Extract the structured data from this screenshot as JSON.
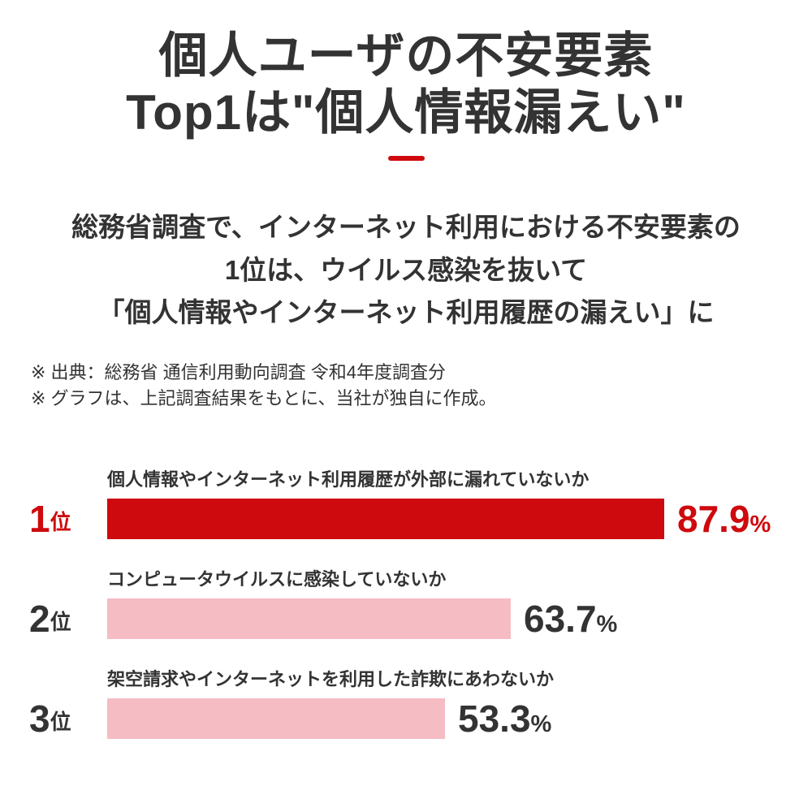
{
  "title": {
    "line1": "個人ユーザの不安要素",
    "line2": "Top1は\"個人情報漏えい\""
  },
  "subtitle": {
    "line1": "総務省調査で、インターネット利用における不安要素の",
    "line2": "1位は、ウイルス感染を抜いて",
    "line3": "「個人情報やインターネット利用履歴の漏えい」に"
  },
  "notes": {
    "line1": "※ 出典：総務省 通信利用動向調査 令和4年度調査分",
    "line2": "※ グラフは、上記調査結果をもとに、当社が独自に作成。"
  },
  "colors": {
    "accent_red": "#CE0A0E",
    "bar_pink": "#F6BCC3",
    "text_dark": "#333333",
    "background": "#FFFFFF"
  },
  "chart": {
    "rows": [
      {
        "rank_number": "1",
        "rank_suffix": "位",
        "label": "個人情報やインターネット利用履歴が外部に漏れていないか",
        "value": 87.9,
        "value_display": "87.9",
        "percent_sign": "%",
        "highlight": true
      },
      {
        "rank_number": "2",
        "rank_suffix": "位",
        "label": "コンピュータウイルスに感染していないか",
        "value": 63.7,
        "value_display": "63.7",
        "percent_sign": "%",
        "highlight": false
      },
      {
        "rank_number": "3",
        "rank_suffix": "位",
        "label": "架空請求やインターネットを利用した詐欺にあわないか",
        "value": 53.3,
        "value_display": "53.3",
        "percent_sign": "%",
        "highlight": false
      }
    ]
  },
  "chart_data": {
    "type": "bar",
    "orientation": "horizontal",
    "title": "個人ユーザの不安要素 Top1は\"個人情報漏えい\"",
    "categories": [
      "個人情報やインターネット利用履歴が外部に漏れていないか",
      "コンピュータウイルスに感染していないか",
      "架空請求やインターネットを利用した詐欺にあわないか"
    ],
    "rank_labels": [
      "1位",
      "2位",
      "3位"
    ],
    "values": [
      87.9,
      63.7,
      53.3
    ],
    "value_labels": [
      "87.9%",
      "63.7%",
      "53.3%"
    ],
    "unit": "%",
    "xlim": [
      0,
      100
    ],
    "bar_colors": [
      "#CE0A0E",
      "#F6BCC3",
      "#F6BCC3"
    ],
    "grid": false,
    "legend": false,
    "source_note": "総務省 通信利用動向調査 令和4年度調査分"
  }
}
